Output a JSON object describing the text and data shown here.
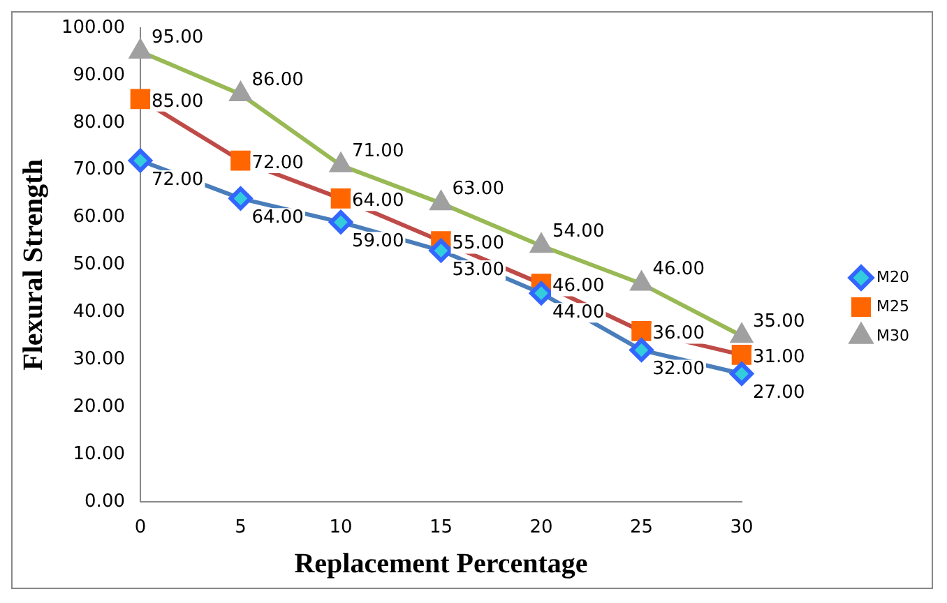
{
  "chart_data": {
    "type": "line",
    "xlabel": "Replacement Percentage",
    "ylabel": "Flexural Strength",
    "categories": [
      "0",
      "5",
      "10",
      "15",
      "20",
      "25",
      "30"
    ],
    "series": [
      {
        "name": "M20",
        "color": "#4a7ebb",
        "marker": "diamond",
        "values": [
          72,
          64,
          59,
          53,
          44,
          32,
          27
        ],
        "value_labels": [
          "72.00",
          "64.00",
          "59.00",
          "53.00",
          "44.00",
          "32.00",
          "27.00"
        ]
      },
      {
        "name": "M25",
        "color": "#be4b48",
        "marker": "square",
        "values": [
          85,
          72,
          64,
          55,
          46,
          36,
          31
        ],
        "value_labels": [
          "85.00",
          "72.00",
          "64.00",
          "55.00",
          "46.00",
          "36.00",
          "31.00"
        ]
      },
      {
        "name": "M30",
        "color": "#98b954",
        "marker": "triangle",
        "values": [
          95,
          86,
          71,
          63,
          54,
          46,
          35
        ],
        "value_labels": [
          "95.00",
          "86.00",
          "71.00",
          "63.00",
          "54.00",
          "46.00",
          "35.00"
        ]
      }
    ],
    "ylim": [
      0,
      100
    ],
    "yticks": [
      {
        "value": 0,
        "label": "0.00"
      },
      {
        "value": 10,
        "label": "10.00"
      },
      {
        "value": 20,
        "label": "20.00"
      },
      {
        "value": 30,
        "label": "30.00"
      },
      {
        "value": 40,
        "label": "40.00"
      },
      {
        "value": 50,
        "label": "50.00"
      },
      {
        "value": 60,
        "label": "60.00"
      },
      {
        "value": 70,
        "label": "70.00"
      },
      {
        "value": 80,
        "label": "80.00"
      },
      {
        "value": 90,
        "label": "90.00"
      },
      {
        "value": 100,
        "label": "100.00"
      }
    ],
    "grid": false,
    "legend": "right"
  }
}
